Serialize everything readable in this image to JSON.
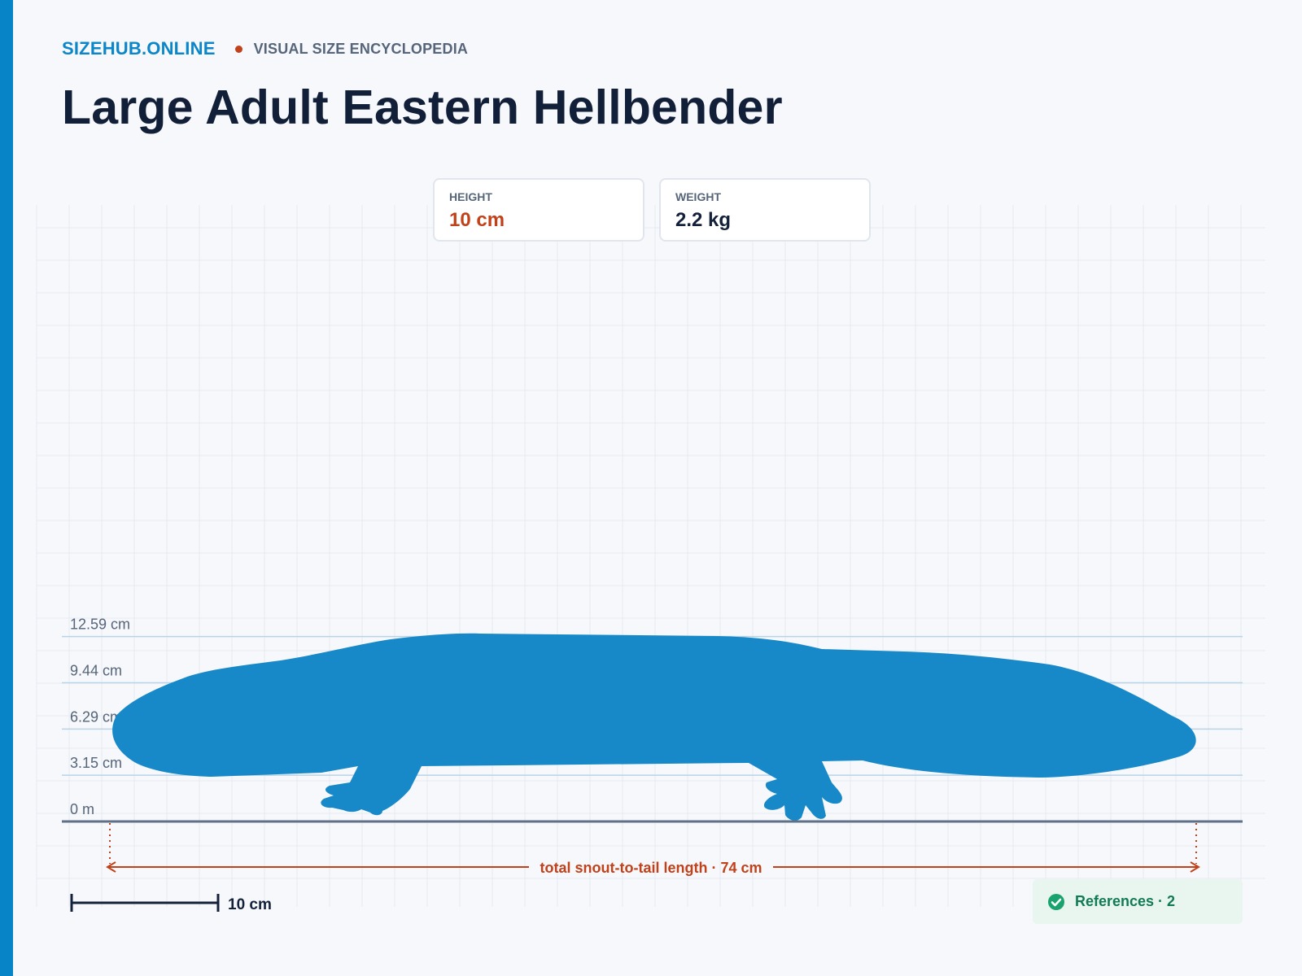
{
  "header": {
    "brand": "SIZEHUB.ONLINE",
    "tagline": "VISUAL SIZE ENCYCLOPEDIA",
    "title": "Large Adult Eastern Hellbender"
  },
  "stats": {
    "height": {
      "label": "HEIGHT",
      "value": "10 cm"
    },
    "weight": {
      "label": "WEIGHT",
      "value": "2.2 kg"
    }
  },
  "scale": {
    "levels": [
      {
        "value": 0,
        "label": "0 m"
      },
      {
        "value": 3.15,
        "label": "3.15 cm"
      },
      {
        "value": 6.29,
        "label": "6.29 cm"
      },
      {
        "value": 9.44,
        "label": "9.44 cm"
      },
      {
        "value": 12.59,
        "label": "12.59 cm"
      }
    ],
    "bar_label": "10 cm"
  },
  "measure": {
    "label": "total snout-to-tail length · 74 cm"
  },
  "silhouette": {
    "subject": "eastern hellbender",
    "color": "#1789c8"
  },
  "references": {
    "label": "References · 2",
    "icon": "check-circle-icon"
  },
  "colors": {
    "brand": "#0b86c9",
    "accent": "#c1421a",
    "silhouette": "#1789c8",
    "success": "#127a56"
  }
}
